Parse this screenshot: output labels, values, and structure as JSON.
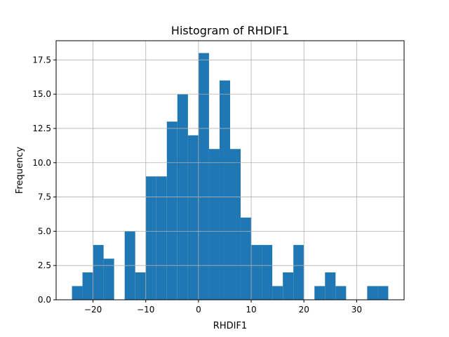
{
  "chart_data": {
    "type": "bar",
    "title": "Histogram of RHDIF1",
    "xlabel": "RHDIF1",
    "ylabel": "Frequency",
    "xlim": [
      -27,
      39
    ],
    "ylim": [
      0,
      18.9
    ],
    "grid": true,
    "bar_color": "#1f77b4",
    "x_ticks": [
      -20,
      -10,
      0,
      10,
      20,
      30
    ],
    "x_tick_labels": [
      "−20",
      "−10",
      "0",
      "10",
      "20",
      "30"
    ],
    "y_ticks": [
      0.0,
      2.5,
      5.0,
      7.5,
      10.0,
      12.5,
      15.0,
      17.5
    ],
    "y_tick_labels": [
      "0.0",
      "2.5",
      "5.0",
      "7.5",
      "10.0",
      "12.5",
      "15.0",
      "17.5"
    ],
    "bins": [
      {
        "x0": -24,
        "x1": -22,
        "value": 1
      },
      {
        "x0": -22,
        "x1": -20,
        "value": 2
      },
      {
        "x0": -20,
        "x1": -18,
        "value": 4
      },
      {
        "x0": -18,
        "x1": -16,
        "value": 3
      },
      {
        "x0": -16,
        "x1": -14,
        "value": 0
      },
      {
        "x0": -14,
        "x1": -12,
        "value": 5
      },
      {
        "x0": -12,
        "x1": -10,
        "value": 2
      },
      {
        "x0": -10,
        "x1": -8,
        "value": 9
      },
      {
        "x0": -8,
        "x1": -6,
        "value": 9
      },
      {
        "x0": -6,
        "x1": -4,
        "value": 13
      },
      {
        "x0": -4,
        "x1": -2,
        "value": 15
      },
      {
        "x0": -2,
        "x1": 0,
        "value": 12
      },
      {
        "x0": 0,
        "x1": 2,
        "value": 18
      },
      {
        "x0": 2,
        "x1": 4,
        "value": 11
      },
      {
        "x0": 4,
        "x1": 6,
        "value": 16
      },
      {
        "x0": 6,
        "x1": 8,
        "value": 11
      },
      {
        "x0": 8,
        "x1": 10,
        "value": 6
      },
      {
        "x0": 10,
        "x1": 12,
        "value": 4
      },
      {
        "x0": 12,
        "x1": 14,
        "value": 4
      },
      {
        "x0": 14,
        "x1": 16,
        "value": 1
      },
      {
        "x0": 16,
        "x1": 18,
        "value": 2
      },
      {
        "x0": 18,
        "x1": 20,
        "value": 4
      },
      {
        "x0": 20,
        "x1": 22,
        "value": 0
      },
      {
        "x0": 22,
        "x1": 24,
        "value": 1
      },
      {
        "x0": 24,
        "x1": 26,
        "value": 2
      },
      {
        "x0": 26,
        "x1": 28,
        "value": 1
      },
      {
        "x0": 28,
        "x1": 30,
        "value": 0
      },
      {
        "x0": 30,
        "x1": 32,
        "value": 0
      },
      {
        "x0": 32,
        "x1": 34,
        "value": 1
      },
      {
        "x0": 34,
        "x1": 36,
        "value": 1
      }
    ]
  }
}
